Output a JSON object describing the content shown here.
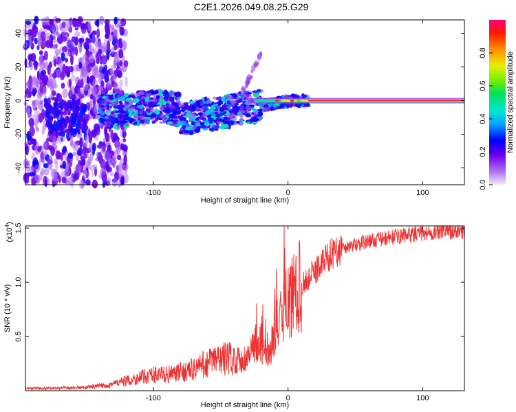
{
  "title": "C2E1.2026.049.08.25.G29",
  "chart_data": [
    {
      "type": "heatmap",
      "title": "C2E1.2026.049.08.25.G29",
      "xlabel": "Height of straight line (km)",
      "ylabel": "Frequency (Hz)",
      "xlim": [
        -195,
        131
      ],
      "ylim": [
        -50,
        48
      ],
      "xticks": [
        -100,
        0,
        100
      ],
      "yticks": [
        -40,
        -20,
        0,
        20,
        40
      ],
      "colorbar": {
        "label": "Normalized spectral amplitude",
        "range": [
          0,
          1
        ],
        "ticks": [
          0.0,
          0.2,
          0.4,
          0.6,
          0.8
        ]
      },
      "features": {
        "noise_region_km": [
          -195,
          -135
        ],
        "doppler_trend_km": [
          -140,
          15
        ],
        "doppler_trend_hz": [
          -13,
          0
        ],
        "steady_line_km": [
          15,
          131
        ],
        "steady_line_hz": 0
      }
    },
    {
      "type": "line",
      "xlabel": "Height of straight line (km)",
      "ylabel": "SNR (10 * v/v)",
      "y_multiplier": "(x10",
      "y_multiplier_exp": "4",
      "xlim": [
        -195,
        131
      ],
      "ylim": [
        0,
        15200
      ],
      "xticks": [
        -100,
        0,
        100
      ],
      "yticks": [
        5000,
        10000,
        15000
      ],
      "ytick_labels": [
        "0.5",
        "1.0",
        "1.5"
      ],
      "color": "#ee3333",
      "series": [
        {
          "name": "SNR",
          "x": [
            -195,
            -170,
            -150,
            -135,
            -120,
            -100,
            -85,
            -70,
            -55,
            -45,
            -35,
            -28,
            -22,
            -18,
            -13,
            -8,
            -3,
            2,
            8,
            15,
            22,
            30,
            40,
            50,
            60,
            70,
            80,
            90,
            100,
            110,
            120,
            131
          ],
          "y": [
            200,
            250,
            300,
            500,
            900,
            1500,
            1500,
            2000,
            2800,
            3000,
            2800,
            3300,
            4800,
            3800,
            4200,
            5800,
            7500,
            8500,
            9500,
            10300,
            11300,
            12500,
            13100,
            13500,
            13800,
            14000,
            14200,
            14400,
            14500,
            14600,
            14700,
            14700
          ]
        }
      ]
    }
  ]
}
